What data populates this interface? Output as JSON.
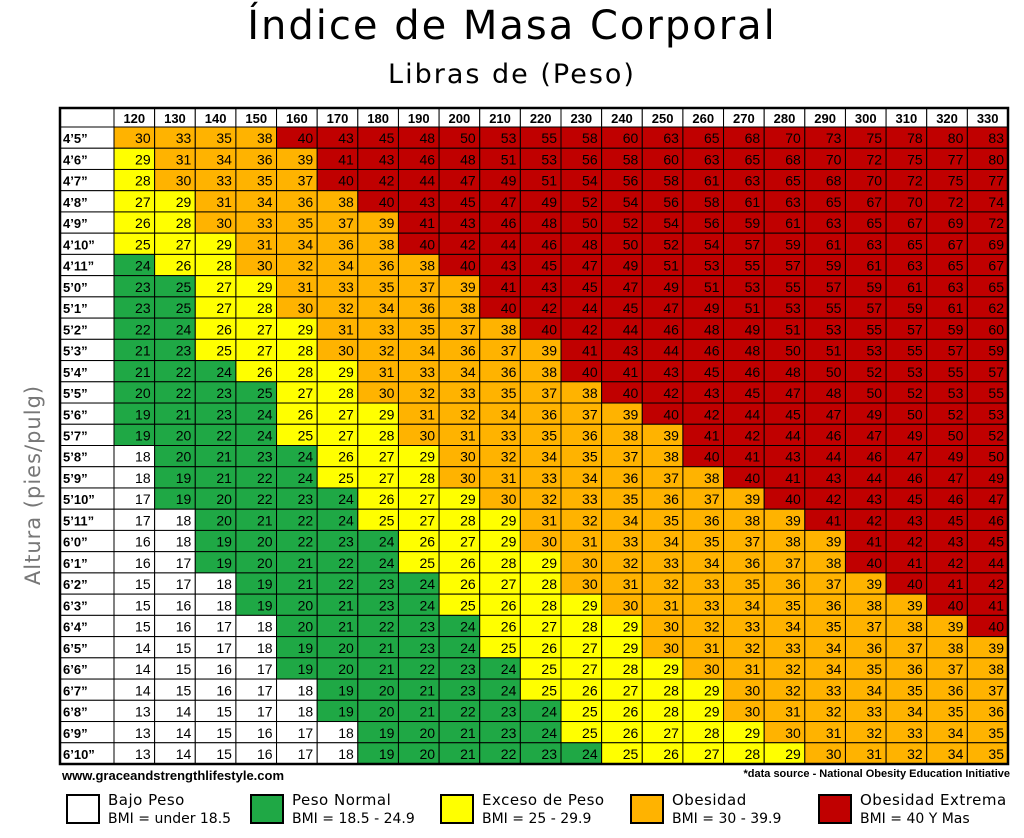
{
  "title": "Índice de Masa Corporal",
  "subtitle": "Libras de (Peso)",
  "ylabel": "Altura (pies/pulg)",
  "website": "www.graceandstrengthlifestyle.com",
  "source": "*data source - National Obesity Education Initiative",
  "legend": [
    {
      "label": "Bajo Peso",
      "range": "BMI = under 18.5",
      "color": "#ffffff"
    },
    {
      "label": "Peso  Normal",
      "range": "BMI = 18.5 - 24.9",
      "color": "#1fa845"
    },
    {
      "label": "Exceso de Peso",
      "range": "BMI = 25 - 29.9",
      "color": "#ffff00"
    },
    {
      "label": "Obesidad",
      "range": "BMI = 30 - 39.9",
      "color": "#ffb300"
    },
    {
      "label": "Obesidad Extrema",
      "range": "BMI = 40 Y Mas",
      "color": "#c00000"
    }
  ],
  "chart_data": {
    "type": "heatmap",
    "x": [
      "120",
      "130",
      "140",
      "150",
      "160",
      "170",
      "180",
      "190",
      "200",
      "210",
      "220",
      "230",
      "240",
      "250",
      "260",
      "270",
      "280",
      "290",
      "300",
      "310",
      "320",
      "330"
    ],
    "y": [
      "4’5”",
      "4’6”",
      "4’7”",
      "4’8”",
      "4’9”",
      "4’10”",
      "4’11”",
      "5’0”",
      "5’1”",
      "5’2”",
      "5’3”",
      "5’4”",
      "5’5”",
      "5’6”",
      "5’7”",
      "5’8”",
      "5’9”",
      "5’10”",
      "5’11”",
      "6’0”",
      "6’1”",
      "6’2”",
      "6’3”",
      "6’4”",
      "6’5”",
      "6’6”",
      "6’7”",
      "6’8”",
      "6’9”",
      "6’10”"
    ],
    "values": [
      [
        30,
        33,
        35,
        38,
        40,
        43,
        45,
        48,
        50,
        53,
        55,
        58,
        60,
        63,
        65,
        68,
        70,
        73,
        75,
        78,
        80,
        83
      ],
      [
        29,
        31,
        34,
        36,
        39,
        41,
        43,
        46,
        48,
        51,
        53,
        56,
        58,
        60,
        63,
        65,
        68,
        70,
        72,
        75,
        77,
        80
      ],
      [
        28,
        30,
        33,
        35,
        37,
        40,
        42,
        44,
        47,
        49,
        51,
        54,
        56,
        58,
        61,
        63,
        65,
        68,
        70,
        72,
        75,
        77
      ],
      [
        27,
        29,
        31,
        34,
        36,
        38,
        40,
        43,
        45,
        47,
        49,
        52,
        54,
        56,
        58,
        61,
        63,
        65,
        67,
        70,
        72,
        74
      ],
      [
        26,
        28,
        30,
        33,
        35,
        37,
        39,
        41,
        43,
        46,
        48,
        50,
        52,
        54,
        56,
        59,
        61,
        63,
        65,
        67,
        69,
        72
      ],
      [
        25,
        27,
        29,
        31,
        34,
        36,
        38,
        40,
        42,
        44,
        46,
        48,
        50,
        52,
        54,
        57,
        59,
        61,
        63,
        65,
        67,
        69
      ],
      [
        24,
        26,
        28,
        30,
        32,
        34,
        36,
        38,
        40,
        43,
        45,
        47,
        49,
        51,
        53,
        55,
        57,
        59,
        61,
        63,
        65,
        67
      ],
      [
        23,
        25,
        27,
        29,
        31,
        33,
        35,
        37,
        39,
        41,
        43,
        45,
        47,
        49,
        51,
        53,
        55,
        57,
        59,
        61,
        63,
        65
      ],
      [
        23,
        25,
        27,
        28,
        30,
        32,
        34,
        36,
        38,
        40,
        42,
        44,
        45,
        47,
        49,
        51,
        53,
        55,
        57,
        59,
        61,
        62
      ],
      [
        22,
        24,
        26,
        27,
        29,
        31,
        33,
        35,
        37,
        38,
        40,
        42,
        44,
        46,
        48,
        49,
        51,
        53,
        55,
        57,
        59,
        60
      ],
      [
        21,
        23,
        25,
        27,
        28,
        30,
        32,
        34,
        36,
        37,
        39,
        41,
        43,
        44,
        46,
        48,
        50,
        51,
        53,
        55,
        57,
        59
      ],
      [
        21,
        22,
        24,
        26,
        28,
        29,
        31,
        33,
        34,
        36,
        38,
        40,
        41,
        43,
        45,
        46,
        48,
        50,
        52,
        53,
        55,
        57
      ],
      [
        20,
        22,
        23,
        25,
        27,
        28,
        30,
        32,
        33,
        35,
        37,
        38,
        40,
        42,
        43,
        45,
        47,
        48,
        50,
        52,
        53,
        55
      ],
      [
        19,
        21,
        23,
        24,
        26,
        27,
        29,
        31,
        32,
        34,
        36,
        37,
        39,
        40,
        42,
        44,
        45,
        47,
        49,
        50,
        52,
        53
      ],
      [
        19,
        20,
        22,
        24,
        25,
        27,
        28,
        30,
        31,
        33,
        35,
        36,
        38,
        39,
        41,
        42,
        44,
        46,
        47,
        49,
        50,
        52
      ],
      [
        18,
        20,
        21,
        23,
        24,
        26,
        27,
        29,
        30,
        32,
        34,
        35,
        37,
        38,
        40,
        41,
        43,
        44,
        46,
        47,
        49,
        50
      ],
      [
        18,
        19,
        21,
        22,
        24,
        25,
        27,
        28,
        30,
        31,
        33,
        34,
        36,
        37,
        38,
        40,
        41,
        43,
        44,
        46,
        47,
        49
      ],
      [
        17,
        19,
        20,
        22,
        23,
        24,
        26,
        27,
        29,
        30,
        32,
        33,
        35,
        36,
        37,
        39,
        40,
        42,
        43,
        45,
        46,
        47
      ],
      [
        17,
        18,
        20,
        21,
        22,
        24,
        25,
        27,
        28,
        29,
        31,
        32,
        34,
        35,
        36,
        38,
        39,
        41,
        42,
        43,
        45,
        46
      ],
      [
        16,
        18,
        19,
        20,
        22,
        23,
        24,
        26,
        27,
        29,
        30,
        31,
        33,
        34,
        35,
        37,
        38,
        39,
        41,
        42,
        43,
        45
      ],
      [
        16,
        17,
        19,
        20,
        21,
        22,
        24,
        25,
        26,
        28,
        29,
        30,
        32,
        33,
        34,
        36,
        37,
        38,
        40,
        41,
        42,
        44
      ],
      [
        15,
        17,
        18,
        19,
        21,
        22,
        23,
        24,
        26,
        27,
        28,
        30,
        31,
        32,
        33,
        35,
        36,
        37,
        39,
        40,
        41,
        42
      ],
      [
        15,
        16,
        18,
        19,
        20,
        21,
        23,
        24,
        25,
        26,
        28,
        29,
        30,
        31,
        33,
        34,
        35,
        36,
        38,
        39,
        40,
        41
      ],
      [
        15,
        16,
        17,
        18,
        20,
        21,
        22,
        23,
        24,
        26,
        27,
        28,
        29,
        30,
        32,
        33,
        34,
        35,
        37,
        38,
        39,
        40
      ],
      [
        14,
        15,
        17,
        18,
        19,
        20,
        21,
        23,
        24,
        25,
        26,
        27,
        29,
        30,
        31,
        32,
        33,
        34,
        36,
        37,
        38,
        39
      ],
      [
        14,
        15,
        16,
        17,
        19,
        20,
        21,
        22,
        23,
        24,
        25,
        27,
        28,
        29,
        30,
        31,
        32,
        34,
        35,
        36,
        37,
        38
      ],
      [
        14,
        15,
        16,
        17,
        18,
        19,
        20,
        21,
        23,
        24,
        25,
        26,
        27,
        28,
        29,
        30,
        32,
        33,
        34,
        35,
        36,
        37
      ],
      [
        13,
        14,
        15,
        17,
        18,
        19,
        20,
        21,
        22,
        23,
        24,
        25,
        26,
        28,
        29,
        30,
        31,
        32,
        33,
        34,
        35,
        36
      ],
      [
        13,
        14,
        15,
        16,
        17,
        18,
        19,
        20,
        21,
        23,
        24,
        25,
        26,
        27,
        28,
        29,
        30,
        31,
        32,
        33,
        34,
        35
      ],
      [
        13,
        14,
        15,
        16,
        17,
        18,
        19,
        20,
        21,
        22,
        23,
        24,
        25,
        26,
        27,
        28,
        29,
        30,
        31,
        32,
        34,
        35
      ]
    ],
    "categories": [
      [
        0,
        0,
        0,
        0,
        4,
        4,
        4,
        4,
        4,
        4,
        4,
        4,
        4,
        4,
        4,
        4,
        4,
        4,
        4,
        4,
        4,
        4
      ],
      [
        0,
        0,
        0,
        0,
        0,
        4,
        4,
        4,
        4,
        4,
        4,
        4,
        4,
        4,
        4,
        4,
        4,
        4,
        4,
        4,
        4,
        4
      ],
      [
        0,
        0,
        0,
        0,
        0,
        4,
        4,
        4,
        4,
        4,
        4,
        4,
        4,
        4,
        4,
        4,
        4,
        4,
        4,
        4,
        4,
        4
      ],
      [
        0,
        0,
        0,
        0,
        0,
        0,
        4,
        4,
        4,
        4,
        4,
        4,
        4,
        4,
        4,
        4,
        4,
        4,
        4,
        4,
        4,
        4
      ],
      [
        0,
        0,
        0,
        0,
        0,
        0,
        0,
        4,
        4,
        4,
        4,
        4,
        4,
        4,
        4,
        4,
        4,
        4,
        4,
        4,
        4,
        4
      ],
      [
        0,
        0,
        0,
        0,
        0,
        0,
        0,
        4,
        4,
        4,
        4,
        4,
        4,
        4,
        4,
        4,
        4,
        4,
        4,
        4,
        4,
        4
      ],
      [
        1,
        0,
        0,
        0,
        0,
        0,
        0,
        0,
        4,
        4,
        4,
        4,
        4,
        4,
        4,
        4,
        4,
        4,
        4,
        4,
        4,
        4
      ],
      [
        1,
        1,
        0,
        0,
        0,
        0,
        0,
        0,
        0,
        4,
        4,
        4,
        4,
        4,
        4,
        4,
        4,
        4,
        4,
        4,
        4,
        4
      ],
      [
        1,
        1,
        0,
        0,
        0,
        0,
        0,
        0,
        0,
        4,
        4,
        4,
        4,
        4,
        4,
        4,
        4,
        4,
        4,
        4,
        4,
        4
      ],
      [
        1,
        1,
        0,
        0,
        0,
        0,
        0,
        0,
        0,
        0,
        4,
        4,
        4,
        4,
        4,
        4,
        4,
        4,
        4,
        4,
        4,
        4
      ],
      [
        1,
        1,
        0,
        0,
        0,
        0,
        0,
        0,
        0,
        0,
        0,
        4,
        4,
        4,
        4,
        4,
        4,
        4,
        4,
        4,
        4,
        4
      ],
      [
        1,
        1,
        1,
        0,
        0,
        0,
        0,
        0,
        0,
        0,
        0,
        4,
        4,
        4,
        4,
        4,
        4,
        4,
        4,
        4,
        4,
        4
      ],
      [
        1,
        1,
        1,
        1,
        0,
        0,
        0,
        0,
        0,
        0,
        0,
        0,
        4,
        4,
        4,
        4,
        4,
        4,
        4,
        4,
        4,
        4
      ],
      [
        1,
        1,
        1,
        1,
        0,
        0,
        0,
        0,
        0,
        0,
        0,
        0,
        0,
        4,
        4,
        4,
        4,
        4,
        4,
        4,
        4,
        4
      ],
      [
        1,
        1,
        1,
        1,
        0,
        0,
        0,
        0,
        0,
        0,
        0,
        0,
        0,
        0,
        4,
        4,
        4,
        4,
        4,
        4,
        4,
        4
      ],
      [
        3,
        1,
        1,
        1,
        1,
        0,
        0,
        0,
        0,
        0,
        0,
        0,
        0,
        0,
        4,
        4,
        4,
        4,
        4,
        4,
        4,
        4
      ],
      [
        3,
        1,
        1,
        1,
        1,
        0,
        0,
        0,
        0,
        0,
        0,
        0,
        0,
        0,
        0,
        4,
        4,
        4,
        4,
        4,
        4,
        4
      ],
      [
        3,
        1,
        1,
        1,
        1,
        1,
        0,
        0,
        0,
        0,
        0,
        0,
        0,
        0,
        0,
        0,
        4,
        4,
        4,
        4,
        4,
        4
      ],
      [
        3,
        3,
        1,
        1,
        1,
        1,
        0,
        0,
        0,
        0,
        0,
        0,
        0,
        0,
        0,
        0,
        0,
        4,
        4,
        4,
        4,
        4
      ],
      [
        3,
        3,
        1,
        1,
        1,
        1,
        1,
        0,
        0,
        0,
        0,
        0,
        0,
        0,
        0,
        0,
        0,
        0,
        4,
        4,
        4,
        4
      ],
      [
        3,
        3,
        1,
        1,
        1,
        1,
        1,
        0,
        0,
        0,
        0,
        0,
        0,
        0,
        0,
        0,
        0,
        0,
        4,
        4,
        4,
        4
      ],
      [
        3,
        3,
        3,
        1,
        1,
        1,
        1,
        1,
        0,
        0,
        0,
        0,
        0,
        0,
        0,
        0,
        0,
        0,
        0,
        4,
        4,
        4
      ],
      [
        3,
        3,
        3,
        1,
        1,
        1,
        1,
        1,
        0,
        0,
        0,
        0,
        0,
        0,
        0,
        0,
        0,
        0,
        0,
        0,
        4,
        4
      ],
      [
        3,
        3,
        3,
        3,
        1,
        1,
        1,
        1,
        1,
        0,
        0,
        0,
        0,
        0,
        0,
        0,
        0,
        0,
        0,
        0,
        0,
        4
      ],
      [
        3,
        3,
        3,
        3,
        1,
        1,
        1,
        1,
        1,
        0,
        0,
        0,
        0,
        0,
        0,
        0,
        0,
        0,
        0,
        0,
        0,
        0
      ],
      [
        3,
        3,
        3,
        3,
        1,
        1,
        1,
        1,
        1,
        1,
        0,
        0,
        0,
        0,
        0,
        0,
        0,
        0,
        0,
        0,
        0,
        0
      ],
      [
        3,
        3,
        3,
        3,
        3,
        1,
        1,
        1,
        1,
        1,
        0,
        0,
        0,
        0,
        0,
        0,
        0,
        0,
        0,
        0,
        0,
        0
      ],
      [
        3,
        3,
        3,
        3,
        3,
        1,
        1,
        1,
        1,
        1,
        1,
        0,
        0,
        0,
        0,
        0,
        0,
        0,
        0,
        0,
        0,
        0
      ],
      [
        3,
        3,
        3,
        3,
        3,
        3,
        1,
        1,
        1,
        1,
        1,
        0,
        0,
        0,
        0,
        0,
        0,
        0,
        0,
        0,
        0,
        0
      ],
      [
        3,
        3,
        3,
        3,
        3,
        3,
        1,
        1,
        1,
        1,
        1,
        1,
        0,
        0,
        0,
        0,
        0,
        0,
        0,
        0,
        0,
        0
      ]
    ],
    "category_colors": {
      "white": "#ffffff",
      "green": "#1fa845",
      "yellow": "#ffff00",
      "orange": "#ffb300",
      "red": "#c00000"
    }
  }
}
